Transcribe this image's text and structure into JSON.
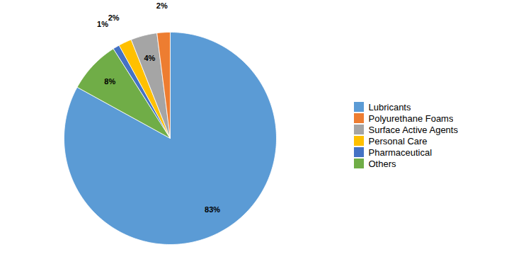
{
  "chart_data": {
    "type": "pie",
    "categories": [
      "Lubricants",
      "Others",
      "Pharmaceutical",
      "Personal Care",
      "Surface Active Agents",
      "Polyurethane Foams"
    ],
    "values": [
      83,
      8,
      1,
      2,
      4,
      2
    ],
    "value_labels": [
      "83%",
      "8%",
      "1%",
      "2%",
      "4%",
      "2%"
    ],
    "colors": [
      "#5B9BD5",
      "#70AD47",
      "#4472C4",
      "#FFC000",
      "#A5A5A5",
      "#ED7D31"
    ],
    "data_labels": true,
    "legend": "right",
    "legend_labels": [
      "Lubricants",
      "Polyurethane Foams",
      "Surface Active Agents",
      "Personal Care",
      "Pharmaceutical",
      "Others"
    ]
  }
}
